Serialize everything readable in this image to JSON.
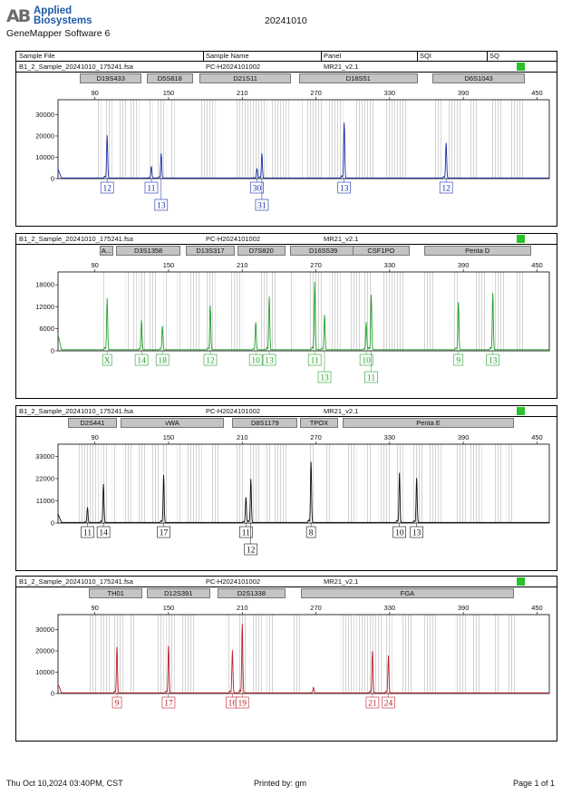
{
  "header": {
    "logo_mark": "AB",
    "logo_line1": "Applied",
    "logo_line2": "Biosystems",
    "software": "GeneMapper Software 6",
    "report_title": "20241010"
  },
  "columns": [
    "Sample File",
    "Sample Name",
    "Panel",
    "SQI",
    "SQ"
  ],
  "footer": {
    "timestamp": "Thu Oct 10,2024 03:40PM, CST",
    "printed_by": "Printed by: gm",
    "page": "Page 1 of 1"
  },
  "colors": {
    "blue": "#1a2ea8",
    "green": "#23a12b",
    "black": "#111111",
    "red": "#c0202b",
    "sq_ok": "#29c229"
  },
  "chart_data": [
    {
      "type": "line",
      "dye": "blue",
      "sample_file": "B1_2_Sample_20241010_175241.fsa",
      "sample_name": "PC-H2024101002",
      "panel": "MR21_v2.1",
      "loci": [
        {
          "name": "D19S433",
          "x_start": 78,
          "x_end": 128
        },
        {
          "name": "D5S818",
          "x_start": 132,
          "x_end": 170
        },
        {
          "name": "D21S11",
          "x_start": 175,
          "x_end": 250
        },
        {
          "name": "D18S51",
          "x_start": 256,
          "x_end": 353
        },
        {
          "name": "D6S1043",
          "x_start": 365,
          "x_end": 440
        }
      ],
      "x_ticks": [
        90,
        150,
        210,
        270,
        330,
        390,
        450
      ],
      "y_ticks": [
        0,
        10000,
        20000,
        30000
      ],
      "y_tick_labels": [
        "0",
        "10000",
        "20000",
        "30000"
      ],
      "ylim": [
        0,
        37000
      ],
      "xlim": [
        60,
        460
      ],
      "bins": [
        [
          92,
          95
        ],
        [
          98,
          104
        ],
        [
          109,
          116
        ],
        [
          119,
          126
        ],
        [
          133,
          137
        ],
        [
          141,
          148
        ],
        [
          152,
          155
        ],
        [
          176,
          188
        ],
        [
          195,
          196
        ],
        [
          205,
          230
        ],
        [
          233,
          248
        ],
        [
          257,
          259
        ],
        [
          263,
          275
        ],
        [
          279,
          292
        ],
        [
          302,
          318
        ],
        [
          326,
          344
        ],
        [
          366,
          372
        ],
        [
          377,
          388
        ],
        [
          395,
          402
        ],
        [
          412,
          421
        ],
        [
          428,
          440
        ]
      ],
      "peaks": [
        {
          "x": 100,
          "height": 20000
        },
        {
          "x": 136,
          "height": 5500
        },
        {
          "x": 144,
          "height": 11500
        },
        {
          "x": 222,
          "height": 4500
        },
        {
          "x": 226,
          "height": 11500
        },
        {
          "x": 293,
          "height": 26000
        },
        {
          "x": 376,
          "height": 16500
        }
      ],
      "alleles": [
        {
          "label": "12",
          "x": 100,
          "row": 0
        },
        {
          "label": "11",
          "x": 136,
          "row": 0
        },
        {
          "label": "13",
          "x": 144,
          "row": 1
        },
        {
          "label": "30",
          "x": 222,
          "row": 0
        },
        {
          "label": "31",
          "x": 226,
          "row": 1
        },
        {
          "label": "13",
          "x": 293,
          "row": 0
        },
        {
          "label": "12",
          "x": 376,
          "row": 0
        }
      ]
    },
    {
      "type": "line",
      "dye": "green",
      "sample_file": "B1_2_Sample_20241010_175241.fsa",
      "sample_name": "PC-H2024101002",
      "panel": "MR21_v2.1",
      "loci": [
        {
          "name": "A...",
          "x_start": 94,
          "x_end": 105
        },
        {
          "name": "D3S1358",
          "x_start": 107,
          "x_end": 160
        },
        {
          "name": "D13S317",
          "x_start": 164,
          "x_end": 204
        },
        {
          "name": "D7S820",
          "x_start": 206,
          "x_end": 245
        },
        {
          "name": "D16S539",
          "x_start": 249,
          "x_end": 303
        },
        {
          "name": "CSF1PO",
          "x_start": 300,
          "x_end": 346
        },
        {
          "name": "Penta D",
          "x_start": 358,
          "x_end": 445
        }
      ],
      "x_ticks": [
        90,
        150,
        210,
        270,
        330,
        390,
        450
      ],
      "y_ticks": [
        0,
        6000,
        12000,
        18000
      ],
      "y_tick_labels": [
        "0",
        "6000",
        "12000",
        "18000"
      ],
      "ylim": [
        0,
        21500
      ],
      "xlim": [
        60,
        460
      ],
      "bins": [
        [
          96,
          99
        ],
        [
          115,
          118
        ],
        [
          120,
          124
        ],
        [
          126,
          132
        ],
        [
          133,
          140
        ],
        [
          146,
          150
        ],
        [
          157,
          160
        ],
        [
          166,
          176
        ],
        [
          181,
          188
        ],
        [
          201,
          210
        ],
        [
          225,
          231
        ],
        [
          233,
          238
        ],
        [
          249,
          252
        ],
        [
          265,
          276
        ],
        [
          281,
          290
        ],
        [
          297,
          306
        ],
        [
          308,
          316
        ],
        [
          324,
          342
        ],
        [
          357,
          366
        ],
        [
          381,
          387
        ],
        [
          400,
          409
        ],
        [
          414,
          424
        ],
        [
          432,
          440
        ]
      ],
      "peaks": [
        {
          "x": 100,
          "height": 14000
        },
        {
          "x": 128,
          "height": 8000
        },
        {
          "x": 145,
          "height": 6500
        },
        {
          "x": 184,
          "height": 12000
        },
        {
          "x": 221,
          "height": 7500
        },
        {
          "x": 232,
          "height": 14500
        },
        {
          "x": 269,
          "height": 18500
        },
        {
          "x": 277,
          "height": 9500
        },
        {
          "x": 311,
          "height": 7500
        },
        {
          "x": 315,
          "height": 15000
        },
        {
          "x": 386,
          "height": 13000
        },
        {
          "x": 414,
          "height": 15500
        }
      ],
      "alleles": [
        {
          "label": "X",
          "x": 100,
          "row": 0
        },
        {
          "label": "14",
          "x": 128,
          "row": 0
        },
        {
          "label": "18",
          "x": 145,
          "row": 0
        },
        {
          "label": "12",
          "x": 184,
          "row": 0
        },
        {
          "label": "10",
          "x": 221,
          "row": 0
        },
        {
          "label": "13",
          "x": 232,
          "row": 0
        },
        {
          "label": "11",
          "x": 269,
          "row": 0
        },
        {
          "label": "13",
          "x": 277,
          "row": 1
        },
        {
          "label": "10",
          "x": 311,
          "row": 0
        },
        {
          "label": "11",
          "x": 315,
          "row": 1
        },
        {
          "label": "9",
          "x": 386,
          "row": 0
        },
        {
          "label": "13",
          "x": 414,
          "row": 0
        }
      ]
    },
    {
      "type": "line",
      "dye": "black",
      "sample_file": "B1_2_Sample_20241010_175241.fsa",
      "sample_name": "PC-H2024101002",
      "panel": "MR21_v2.1",
      "loci": [
        {
          "name": "D2S441",
          "x_start": 68,
          "x_end": 108
        },
        {
          "name": "vWA",
          "x_start": 111,
          "x_end": 195
        },
        {
          "name": "D8S1179",
          "x_start": 202,
          "x_end": 255
        },
        {
          "name": "TPOX",
          "x_start": 257,
          "x_end": 288
        },
        {
          "name": "Penta E",
          "x_start": 292,
          "x_end": 431
        }
      ],
      "x_ticks": [
        90,
        150,
        210,
        270,
        330,
        390,
        450
      ],
      "y_ticks": [
        0,
        11000,
        22000,
        33000
      ],
      "y_tick_labels": [
        "0",
        "11000",
        "22000",
        "33000"
      ],
      "ylim": [
        0,
        39000
      ],
      "xlim": [
        60,
        460
      ],
      "bins": [
        [
          77,
          93
        ],
        [
          95,
          100
        ],
        [
          104,
          108
        ],
        [
          113,
          121
        ],
        [
          125,
          131
        ],
        [
          136,
          142
        ],
        [
          145,
          150
        ],
        [
          157,
          161
        ],
        [
          165,
          177
        ],
        [
          185,
          192
        ],
        [
          205,
          212
        ],
        [
          216,
          224
        ],
        [
          228,
          234
        ],
        [
          236,
          247
        ],
        [
          265,
          269
        ],
        [
          277,
          283
        ],
        [
          296,
          303
        ],
        [
          310,
          315
        ],
        [
          321,
          331
        ],
        [
          335,
          341
        ],
        [
          348,
          357
        ],
        [
          361,
          372
        ],
        [
          384,
          392
        ],
        [
          395,
          405
        ],
        [
          415,
          421
        ],
        [
          425,
          430
        ]
      ],
      "peaks": [
        {
          "x": 84,
          "height": 7500
        },
        {
          "x": 97,
          "height": 19000
        },
        {
          "x": 146,
          "height": 23500
        },
        {
          "x": 213,
          "height": 12500
        },
        {
          "x": 217,
          "height": 21500
        },
        {
          "x": 266,
          "height": 30000
        },
        {
          "x": 338,
          "height": 24500
        },
        {
          "x": 352,
          "height": 22000
        }
      ],
      "alleles": [
        {
          "label": "11",
          "x": 84,
          "row": 0
        },
        {
          "label": "14",
          "x": 97,
          "row": 0
        },
        {
          "label": "17",
          "x": 146,
          "row": 0
        },
        {
          "label": "11",
          "x": 213,
          "row": 0
        },
        {
          "label": "12",
          "x": 217,
          "row": 1
        },
        {
          "label": "8",
          "x": 266,
          "row": 0
        },
        {
          "label": "10",
          "x": 338,
          "row": 0
        },
        {
          "label": "13",
          "x": 352,
          "row": 0
        }
      ]
    },
    {
      "type": "line",
      "dye": "red",
      "sample_file": "B1_2_Sample_20241010_175241.fsa",
      "sample_name": "PC-H2024101002",
      "panel": "MR21_v2.1",
      "loci": [
        {
          "name": "TH01",
          "x_start": 85,
          "x_end": 129
        },
        {
          "name": "D12S391",
          "x_start": 132,
          "x_end": 184
        },
        {
          "name": "D2S1338",
          "x_start": 190,
          "x_end": 245
        },
        {
          "name": "FGA",
          "x_start": 258,
          "x_end": 431
        }
      ],
      "x_ticks": [
        90,
        150,
        210,
        270,
        330,
        390,
        450
      ],
      "y_ticks": [
        0,
        10000,
        20000,
        30000
      ],
      "y_tick_labels": [
        "0",
        "10000",
        "20000",
        "30000"
      ],
      "ylim": [
        0,
        37000
      ],
      "xlim": [
        60,
        460
      ],
      "bins": [
        [
          85,
          92
        ],
        [
          94,
          102
        ],
        [
          105,
          113
        ],
        [
          118,
          122
        ],
        [
          140,
          146
        ],
        [
          148,
          155
        ],
        [
          160,
          172
        ],
        [
          197,
          200
        ],
        [
          207,
          214
        ],
        [
          218,
          226
        ],
        [
          230,
          236
        ],
        [
          251,
          258
        ],
        [
          290,
          301
        ],
        [
          303,
          324
        ],
        [
          327,
          332
        ],
        [
          340,
          349
        ],
        [
          357,
          368
        ],
        [
          383,
          392
        ],
        [
          398,
          404
        ],
        [
          415,
          419
        ],
        [
          426,
          432
        ]
      ],
      "peaks": [
        {
          "x": 108,
          "height": 21500
        },
        {
          "x": 150,
          "height": 22000
        },
        {
          "x": 202,
          "height": 20000
        },
        {
          "x": 210,
          "height": 32500
        },
        {
          "x": 268,
          "height": 2500
        },
        {
          "x": 316,
          "height": 19500
        },
        {
          "x": 329,
          "height": 17500
        }
      ],
      "alleles": [
        {
          "label": "9",
          "x": 108,
          "row": 0
        },
        {
          "label": "17",
          "x": 150,
          "row": 0
        },
        {
          "label": "16",
          "x": 202,
          "row": 0
        },
        {
          "label": "19",
          "x": 210,
          "row": 0
        },
        {
          "label": "21",
          "x": 316,
          "row": 0
        },
        {
          "label": "24",
          "x": 329,
          "row": 0
        }
      ]
    }
  ]
}
